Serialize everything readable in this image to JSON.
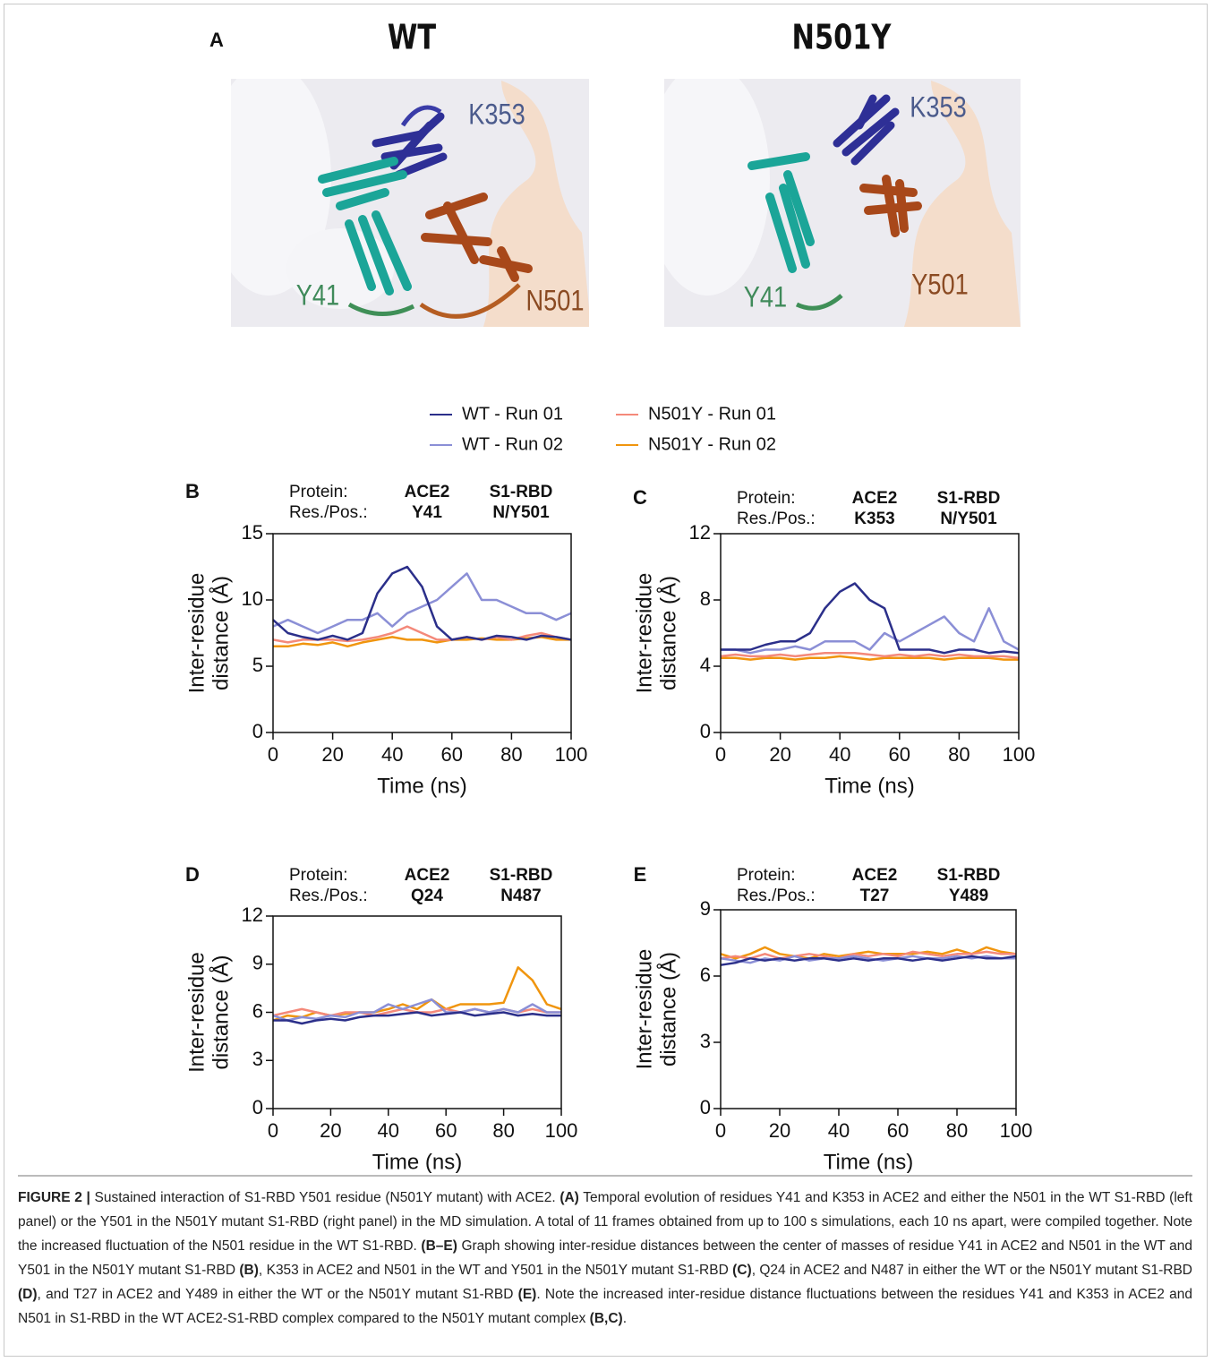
{
  "panel_a": {
    "label": "A",
    "panels": [
      {
        "title": "WT",
        "labels": [
          "K353",
          "Y41",
          "N501"
        ]
      },
      {
        "title": "N501Y",
        "labels": [
          "K353",
          "Y41",
          "Y501"
        ]
      }
    ]
  },
  "chart_data": [
    {
      "type": "line",
      "panel_label": "B",
      "annotation": [
        [
          "Protein:",
          "ACE2",
          "S1-RBD"
        ],
        [
          "Res./Pos.:",
          "Y41",
          "N/Y501"
        ]
      ],
      "xlabel": "Time (ns)",
      "ylabel": [
        "Inter-residue",
        "distance (Å)"
      ],
      "xlim": [
        0,
        100
      ],
      "xticks": [
        0,
        20,
        40,
        60,
        80,
        100
      ],
      "ylim": [
        0,
        15
      ],
      "yticks": [
        0,
        5,
        10,
        15
      ],
      "x": [
        0,
        5,
        10,
        15,
        20,
        25,
        30,
        35,
        40,
        45,
        50,
        55,
        60,
        65,
        70,
        75,
        80,
        85,
        90,
        95,
        100
      ],
      "series": [
        {
          "name": "WT - Run 01",
          "color": "#2b2f8a",
          "values": [
            8.5,
            7.5,
            7.2,
            7,
            7.3,
            7,
            7.5,
            10.5,
            12,
            12.5,
            11,
            8,
            7,
            7.2,
            7,
            7.3,
            7.2,
            7,
            7.3,
            7.2,
            7
          ]
        },
        {
          "name": "WT - Run 02",
          "color": "#8b8fd6",
          "values": [
            8,
            8.5,
            8,
            7.5,
            8,
            8.5,
            8.5,
            9,
            8,
            9,
            9.5,
            10,
            11,
            12,
            10,
            10,
            9.5,
            9,
            9,
            8.5,
            9
          ]
        },
        {
          "name": "N501Y - Run 01",
          "color": "#f4897a",
          "values": [
            7,
            6.8,
            7,
            7,
            7,
            6.9,
            7,
            7.2,
            7.5,
            8,
            7.5,
            7,
            7,
            7.2,
            7,
            7.2,
            7,
            7.3,
            7.5,
            7.2,
            7
          ]
        },
        {
          "name": "N501Y - Run 02",
          "color": "#f0950e",
          "values": [
            6.5,
            6.5,
            6.7,
            6.6,
            6.8,
            6.5,
            6.8,
            7,
            7.2,
            7,
            7,
            6.8,
            7,
            7,
            7.1,
            7,
            7,
            7.1,
            7.2,
            7,
            7
          ]
        }
      ]
    },
    {
      "type": "line",
      "panel_label": "C",
      "annotation": [
        [
          "Protein:",
          "ACE2",
          "S1-RBD"
        ],
        [
          "Res./Pos.:",
          "K353",
          "N/Y501"
        ]
      ],
      "xlabel": "Time (ns)",
      "ylabel": [
        "Inter-residue",
        "distance (Å)"
      ],
      "xlim": [
        0,
        100
      ],
      "xticks": [
        0,
        20,
        40,
        60,
        80,
        100
      ],
      "ylim": [
        0,
        12
      ],
      "yticks": [
        0,
        4,
        8,
        12
      ],
      "x": [
        0,
        5,
        10,
        15,
        20,
        25,
        30,
        35,
        40,
        45,
        50,
        55,
        60,
        65,
        70,
        75,
        80,
        85,
        90,
        95,
        100
      ],
      "series": [
        {
          "color": "#2b2f8a",
          "values": [
            5,
            5,
            5,
            5.3,
            5.5,
            5.5,
            6,
            7.5,
            8.5,
            9,
            8,
            7.5,
            5,
            5,
            5,
            4.8,
            5,
            5,
            4.8,
            4.9,
            4.8
          ]
        },
        {
          "color": "#8b8fd6",
          "values": [
            5,
            5,
            4.8,
            5,
            5,
            5.2,
            5,
            5.5,
            5.5,
            5.5,
            5,
            6,
            5.5,
            6,
            6.5,
            7,
            6,
            5.5,
            7.5,
            5.5,
            5
          ]
        },
        {
          "color": "#f4897a",
          "values": [
            4.6,
            4.7,
            4.6,
            4.6,
            4.7,
            4.6,
            4.7,
            4.8,
            4.8,
            4.8,
            4.7,
            4.6,
            4.7,
            4.6,
            4.7,
            4.6,
            4.7,
            4.6,
            4.6,
            4.6,
            4.5
          ]
        },
        {
          "color": "#f0950e",
          "values": [
            4.5,
            4.5,
            4.4,
            4.5,
            4.5,
            4.4,
            4.5,
            4.5,
            4.6,
            4.5,
            4.4,
            4.5,
            4.5,
            4.5,
            4.5,
            4.4,
            4.5,
            4.5,
            4.5,
            4.4,
            4.4
          ]
        }
      ]
    },
    {
      "type": "line",
      "panel_label": "D",
      "annotation": [
        [
          "Protein:",
          "ACE2",
          "S1-RBD"
        ],
        [
          "Res./Pos.:",
          "Q24",
          "N487"
        ]
      ],
      "xlabel": "Time (ns)",
      "ylabel": [
        "Inter-residue",
        "distance (Å)"
      ],
      "xlim": [
        0,
        100
      ],
      "xticks": [
        0,
        20,
        40,
        60,
        80,
        100
      ],
      "ylim": [
        0,
        12
      ],
      "yticks": [
        0,
        3,
        6,
        9,
        12
      ],
      "x": [
        0,
        5,
        10,
        15,
        20,
        25,
        30,
        35,
        40,
        45,
        50,
        55,
        60,
        65,
        70,
        75,
        80,
        85,
        90,
        95,
        100
      ],
      "series": [
        {
          "color": "#2b2f8a",
          "values": [
            5.5,
            5.5,
            5.3,
            5.5,
            5.6,
            5.5,
            5.7,
            5.8,
            5.8,
            5.9,
            6,
            5.8,
            5.9,
            6,
            5.8,
            5.9,
            6,
            5.8,
            5.9,
            5.8,
            5.8
          ]
        },
        {
          "color": "#8b8fd6",
          "values": [
            5.8,
            5.5,
            5.7,
            5.6,
            5.8,
            5.7,
            6,
            6,
            6.5,
            6.2,
            6.5,
            6.8,
            6,
            6,
            6.2,
            6,
            6.2,
            6,
            6.5,
            6,
            6
          ]
        },
        {
          "color": "#f4897a",
          "values": [
            5.8,
            6,
            6.2,
            6,
            5.8,
            6,
            6,
            5.8,
            6,
            6.2,
            6,
            6,
            6.2,
            6,
            6.2,
            6,
            6.2,
            6,
            6.2,
            6,
            6
          ]
        },
        {
          "color": "#f0950e",
          "values": [
            5.5,
            5.8,
            5.7,
            6,
            5.8,
            5.9,
            6,
            6,
            6.2,
            6.5,
            6.2,
            6.8,
            6.2,
            6.5,
            6.5,
            6.5,
            6.6,
            8.8,
            8,
            6.5,
            6.2
          ]
        }
      ]
    },
    {
      "type": "line",
      "panel_label": "E",
      "annotation": [
        [
          "Protein:",
          "ACE2",
          "S1-RBD"
        ],
        [
          "Res./Pos.:",
          "T27",
          "Y489"
        ]
      ],
      "xlabel": "Time (ns)",
      "ylabel": [
        "Inter-residue",
        "distance (Å)"
      ],
      "xlim": [
        0,
        100
      ],
      "xticks": [
        0,
        20,
        40,
        60,
        80,
        100
      ],
      "ylim": [
        0,
        9
      ],
      "yticks": [
        0,
        3,
        6,
        9
      ],
      "x": [
        0,
        5,
        10,
        15,
        20,
        25,
        30,
        35,
        40,
        45,
        50,
        55,
        60,
        65,
        70,
        75,
        80,
        85,
        90,
        95,
        100
      ],
      "series": [
        {
          "color": "#2b2f8a",
          "values": [
            6.5,
            6.6,
            6.8,
            6.7,
            6.8,
            6.7,
            6.8,
            6.8,
            6.7,
            6.8,
            6.7,
            6.8,
            6.8,
            6.7,
            6.8,
            6.7,
            6.8,
            6.9,
            6.8,
            6.8,
            6.9
          ]
        },
        {
          "color": "#8b8fd6",
          "values": [
            6.8,
            6.7,
            6.6,
            6.8,
            6.7,
            6.9,
            6.7,
            6.8,
            6.8,
            6.9,
            6.8,
            6.7,
            6.8,
            6.9,
            6.8,
            6.8,
            6.9,
            6.8,
            6.9,
            6.8,
            6.8
          ]
        },
        {
          "color": "#f4897a",
          "values": [
            6.8,
            6.9,
            6.8,
            7,
            6.8,
            6.9,
            7,
            6.9,
            6.8,
            7,
            6.9,
            7,
            6.9,
            7.1,
            7,
            6.9,
            7,
            7,
            7.1,
            7,
            7
          ]
        },
        {
          "color": "#f0950e",
          "values": [
            7,
            6.8,
            7,
            7.3,
            7,
            6.9,
            6.8,
            7,
            6.9,
            7,
            7.1,
            7,
            7,
            7,
            7.1,
            7,
            7.2,
            7,
            7.3,
            7.1,
            7
          ]
        }
      ]
    }
  ],
  "caption": [
    {
      "text": "FIGURE 2 |",
      "bold": true
    },
    {
      "text": " Sustained interaction of S1-RBD Y501 residue (N501Y mutant) with ACE2. ",
      "bold": false
    },
    {
      "text": "(A)",
      "bold": true
    },
    {
      "text": " Temporal evolution of residues Y41 and K353 in ACE2 and either the N501 in the WT S1-RBD (left panel) or the Y501 in the N501Y mutant S1-RBD (right panel) in the MD simulation. A total of 11 frames obtained from up to 100 s simulations, each 10 ns apart, were compiled together. Note the increased fluctuation of the N501 residue in the WT S1-RBD. ",
      "bold": false
    },
    {
      "text": "(B–E)",
      "bold": true
    },
    {
      "text": " Graph showing inter-residue distances between the center of masses of residue Y41 in ACE2 and N501 in the WT and Y501 in the N501Y mutant S1-RBD ",
      "bold": false
    },
    {
      "text": "(B)",
      "bold": true
    },
    {
      "text": ", K353 in ACE2 and N501 in the WT and Y501 in the N501Y mutant S1-RBD ",
      "bold": false
    },
    {
      "text": "(C)",
      "bold": true
    },
    {
      "text": ", Q24 in ACE2 and N487 in either the WT or the N501Y mutant S1-RBD ",
      "bold": false
    },
    {
      "text": "(D)",
      "bold": true
    },
    {
      "text": ", and T27 in ACE2 and Y489 in either the WT or the N501Y mutant S1-RBD ",
      "bold": false
    },
    {
      "text": "(E)",
      "bold": true
    },
    {
      "text": ". Note the increased inter-residue distance fluctuations between the residues Y41 and K353 in ACE2 and N501 in S1-RBD in the WT ACE2-S1-RBD complex compared to the N501Y mutant complex ",
      "bold": false
    },
    {
      "text": "(B,C)",
      "bold": true
    },
    {
      "text": ".",
      "bold": false
    }
  ]
}
